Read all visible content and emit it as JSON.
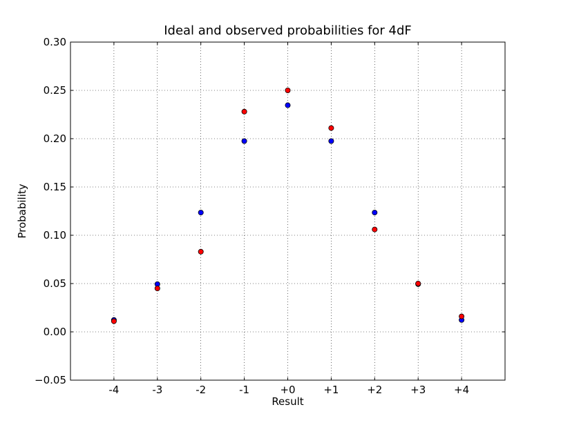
{
  "chart_data": {
    "type": "scatter",
    "title": "Ideal and observed probabilities for 4dF",
    "xlabel": "Result",
    "ylabel": "Probability",
    "categories": [
      "-4",
      "-3",
      "-2",
      "-1",
      "+0",
      "+1",
      "+2",
      "+3",
      "+4"
    ],
    "x": [
      -4,
      -3,
      -2,
      -1,
      0,
      1,
      2,
      3,
      4
    ],
    "xlim": [
      -5,
      5
    ],
    "ylim": [
      -0.05,
      0.3
    ],
    "yticks": [
      -0.05,
      0.0,
      0.05,
      0.1,
      0.15,
      0.2,
      0.25,
      0.3
    ],
    "ytick_labels": [
      "−0.05",
      "0.00",
      "0.05",
      "0.10",
      "0.15",
      "0.20",
      "0.25",
      "0.30"
    ],
    "grid": true,
    "series": [
      {
        "color": "#0000ff",
        "values": [
          0.0123,
          0.0494,
          0.1235,
          0.1975,
          0.2346,
          0.1975,
          0.1235,
          0.0494,
          0.0123
        ]
      },
      {
        "color": "#ff0000",
        "values": [
          0.011,
          0.045,
          0.083,
          0.228,
          0.25,
          0.211,
          0.106,
          0.05,
          0.016
        ]
      }
    ]
  }
}
